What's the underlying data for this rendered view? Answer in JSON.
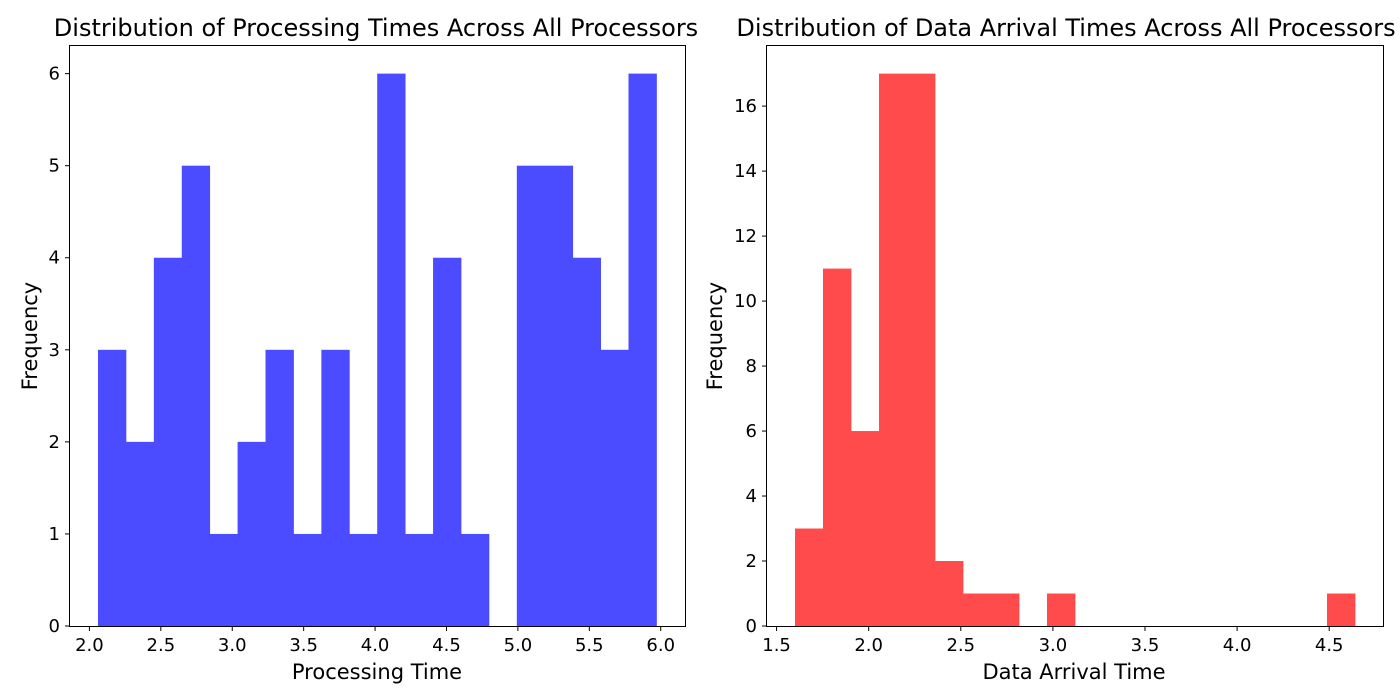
{
  "chart_data": [
    {
      "type": "bar",
      "title": "Distribution of Processing Times Across All Processors",
      "xlabel": "Processing Time",
      "ylabel": "Frequency",
      "color": "#4b4bff",
      "bin_edges": [
        2.06,
        2.2555,
        2.451,
        2.6465,
        2.842,
        3.0375,
        3.233,
        3.4285,
        3.624,
        3.8195,
        4.015,
        4.2105,
        4.406,
        4.6015,
        4.797,
        4.9925,
        5.188,
        5.3835,
        5.579,
        5.7745,
        5.97
      ],
      "values": [
        3,
        2,
        4,
        5,
        1,
        2,
        3,
        1,
        3,
        1,
        6,
        1,
        4,
        1,
        0,
        5,
        5,
        4,
        3,
        6
      ],
      "xlim": [
        1.864,
        6.17
      ],
      "ylim": [
        0,
        6.3
      ],
      "xticks": [
        2.0,
        2.5,
        3.0,
        3.5,
        4.0,
        4.5,
        5.0,
        5.5,
        6.0
      ],
      "xtick_labels": [
        "2.0",
        "2.5",
        "3.0",
        "3.5",
        "4.0",
        "4.5",
        "5.0",
        "5.5",
        "6.0"
      ],
      "yticks": [
        0,
        1,
        2,
        3,
        4,
        5,
        6
      ],
      "ytick_labels": [
        "0",
        "1",
        "2",
        "3",
        "4",
        "5",
        "6"
      ]
    },
    {
      "type": "bar",
      "title": "Distribution of Data Arrival Times Across All Processors",
      "xlabel": "Data Arrival Time",
      "ylabel": "Frequency",
      "color": "#ff4b4b",
      "bin_edges": [
        1.6,
        1.752,
        1.904,
        2.056,
        2.208,
        2.36,
        2.512,
        2.664,
        2.816,
        2.968,
        3.12,
        3.272,
        3.424,
        3.576,
        3.728,
        3.88,
        4.032,
        4.184,
        4.336,
        4.488,
        4.64
      ],
      "values": [
        3,
        11,
        6,
        17,
        17,
        2,
        1,
        1,
        0,
        1,
        0,
        0,
        0,
        0,
        0,
        0,
        0,
        0,
        0,
        1
      ],
      "xlim": [
        1.448,
        4.792
      ],
      "ylim": [
        0,
        17.85
      ],
      "xticks": [
        1.5,
        2.0,
        2.5,
        3.0,
        3.5,
        4.0,
        4.5
      ],
      "xtick_labels": [
        "1.5",
        "2.0",
        "2.5",
        "3.0",
        "3.5",
        "4.0",
        "4.5"
      ],
      "yticks": [
        0,
        2,
        4,
        6,
        8,
        10,
        12,
        14,
        16
      ],
      "ytick_labels": [
        "0",
        "2",
        "4",
        "6",
        "8",
        "10",
        "12",
        "14",
        "16"
      ]
    }
  ]
}
